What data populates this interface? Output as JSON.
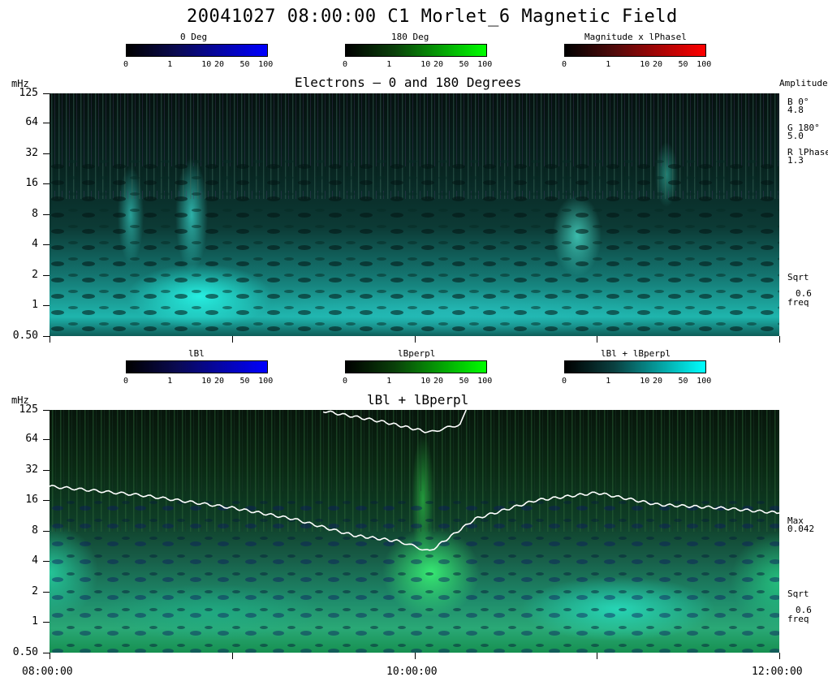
{
  "title": "20041027 08:00:00 C1 Morlet_6 Magnetic Field",
  "colorbars_top": [
    {
      "label": "0 Deg",
      "color": "#0000ff",
      "ticks": [
        "0",
        "1",
        "10",
        "20",
        "50",
        "100"
      ]
    },
    {
      "label": "180 Deg",
      "color": "#00ff00",
      "ticks": [
        "0",
        "1",
        "10",
        "20",
        "50",
        "100"
      ]
    },
    {
      "label": "Magnitude x lPhasel",
      "color": "#ff0000",
      "ticks": [
        "0",
        "1",
        "10",
        "20",
        "50",
        "100"
      ]
    }
  ],
  "colorbars_bottom": [
    {
      "label": "lBl",
      "color": "#0000ff",
      "ticks": [
        "0",
        "1",
        "10",
        "20",
        "50",
        "100"
      ]
    },
    {
      "label": "lBperpl",
      "color": "#00ff00",
      "ticks": [
        "0",
        "1",
        "10",
        "20",
        "50",
        "100"
      ]
    },
    {
      "label": "lBl + lBperpl",
      "color": "#00ffff",
      "ticks": [
        "0",
        "1",
        "10",
        "20",
        "50",
        "100"
      ]
    }
  ],
  "panel1": {
    "title": "Electrons – 0 and 180 Degrees",
    "ylabel": "mHz",
    "right_header": "Amplitude",
    "legend": [
      {
        "key": "B 0°",
        "value": "4.8"
      },
      {
        "key": "G 180°",
        "value": "5.0"
      },
      {
        "key": "R lPhase",
        "value": "1.3"
      }
    ],
    "scale_label": "Sqrt",
    "scale_value": "0.6",
    "scale_unit": "freq"
  },
  "panel2": {
    "title": "lBl + lBperpl",
    "ylabel": "mHz",
    "max_label": "Max",
    "max_value": "0.042",
    "scale_label": "Sqrt",
    "scale_value": "0.6",
    "scale_unit": "freq"
  },
  "yticks": [
    "125",
    "64",
    "32",
    "16",
    "8",
    "4",
    "2",
    "1",
    "0.50"
  ],
  "xticks": [
    "08:00:00",
    "10:00:00",
    "12:00:00"
  ],
  "chart_data": {
    "type": "heatmap",
    "title": "20041027 08:00:00 C1 Morlet_6 Magnetic Field",
    "y_axis": {
      "label": "mHz",
      "scale": "log",
      "ticks": [
        125,
        64,
        32,
        16,
        8,
        4,
        2,
        1,
        0.5
      ]
    },
    "x_axis": {
      "ticks": [
        "08:00:00",
        "10:00:00",
        "12:00:00"
      ]
    },
    "panels": [
      {
        "title": "Electrons – 0 and 180 Degrees",
        "amplitudes": {
          "B 0°": 4.8,
          "G 180°": 5.0,
          "R lPhase": 1.3
        },
        "dominant_color": "#20e0d8"
      },
      {
        "title": "lBl + lBperpl",
        "max": 0.042,
        "dominant_color": "#20c080",
        "series": [
          {
            "x": [
              "08:00",
              "08:30",
              "09:00",
              "09:20",
              "09:40",
              "09:55",
              "10:05",
              "10:20",
              "10:40",
              "11:00",
              "11:20",
              "11:40",
              "12:00"
            ],
            "y": [
              22,
              18,
              13.5,
              10.5,
              7.2,
              6.3,
              5.0,
              10.5,
              16,
              19,
              14.5,
              13.5,
              12
            ]
          },
          {
            "x": [
              "09:30",
              "09:50",
              "10:05",
              "10:15",
              "10:17"
            ],
            "y": [
              122,
              95,
              75,
              90,
              125
            ]
          }
        ]
      }
    ]
  }
}
